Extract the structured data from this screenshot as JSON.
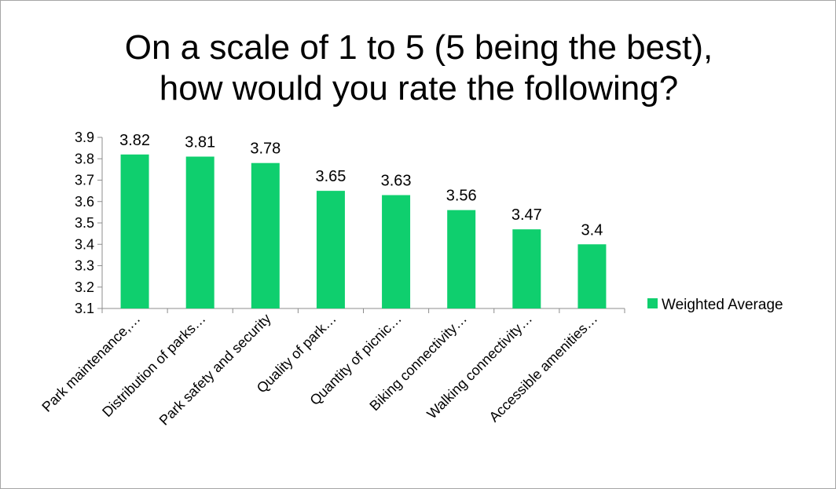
{
  "chart_data": {
    "type": "bar",
    "title_line1": "On a scale of 1 to 5 (5 being the best),",
    "title_line2": "how would you rate the following?",
    "categories": [
      "Park maintenance,…",
      "Distribution of parks…",
      "Park safety and security",
      "Quality of park…",
      "Quantity of picnic…",
      "Biking connectivity…",
      "Walking connectivity…",
      "Accessible amenities…"
    ],
    "series": [
      {
        "name": "Weighted Average",
        "color": "#0fcf6e",
        "values": [
          3.82,
          3.81,
          3.78,
          3.65,
          3.63,
          3.56,
          3.47,
          3.4
        ],
        "data_labels": [
          "3.82",
          "3.81",
          "3.78",
          "3.65",
          "3.63",
          "3.56",
          "3.47",
          "3.4"
        ]
      }
    ],
    "ylim": [
      3.1,
      3.9
    ],
    "yticks": [
      "3.1",
      "3.2",
      "3.3",
      "3.4",
      "3.5",
      "3.6",
      "3.7",
      "3.8",
      "3.9"
    ],
    "grid": false,
    "legend_position": "right"
  }
}
